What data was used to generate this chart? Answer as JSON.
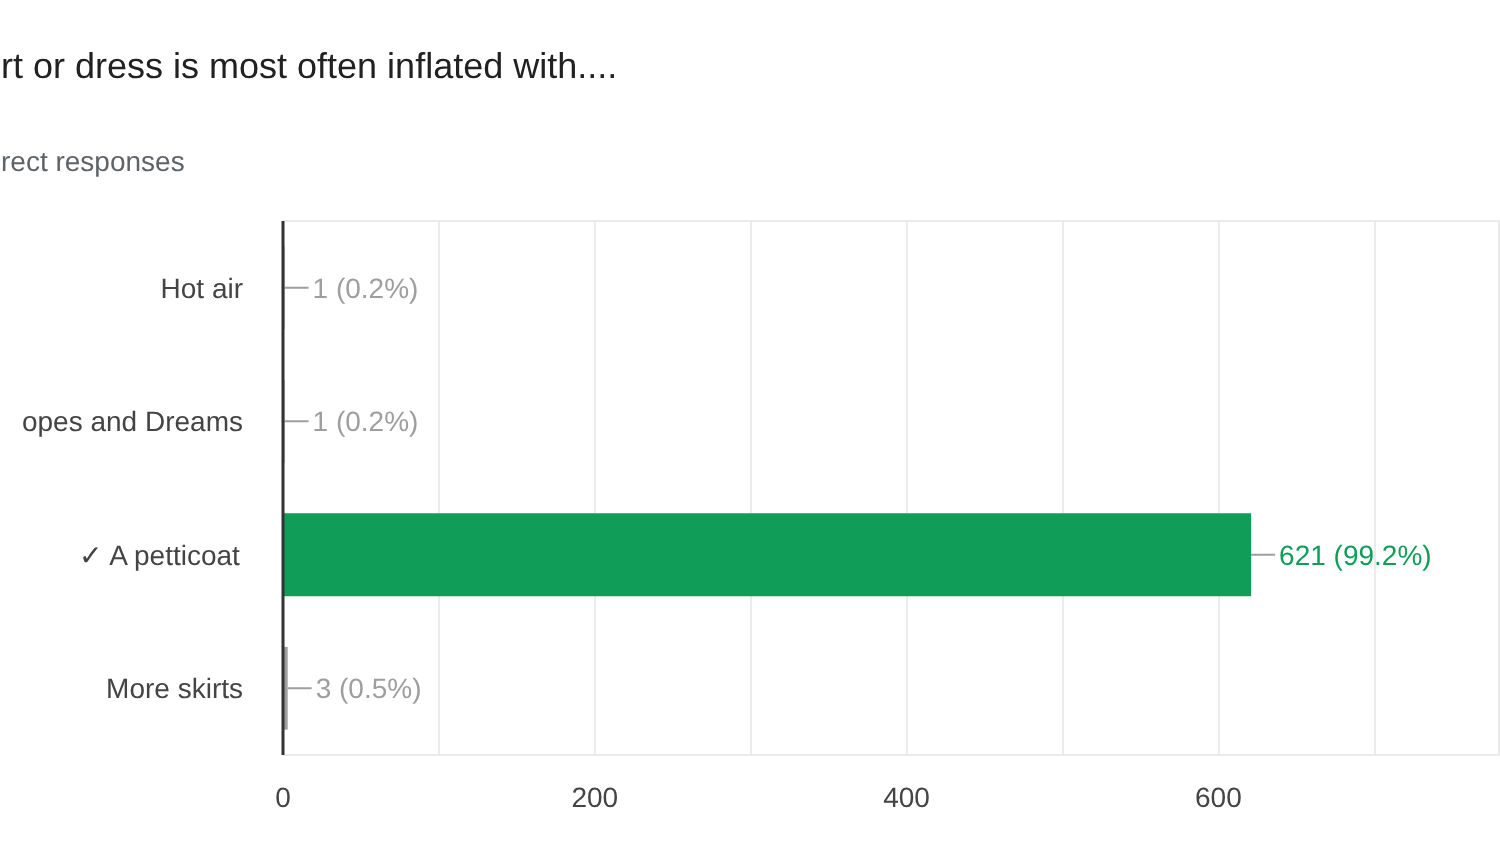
{
  "chart_data": {
    "type": "bar",
    "orientation": "horizontal",
    "title": "rt or dress is most often inflated with....",
    "subtitle": "rect responses",
    "categories": [
      "Hot air",
      "opes and Dreams",
      "✓ A petticoat",
      "More skirts"
    ],
    "values": [
      1,
      1,
      621,
      3
    ],
    "colors": [
      "#9e9e9e",
      "#9e9e9e",
      "#0f9d58",
      "#9e9e9e"
    ],
    "value_labels": [
      "1 (0.2%)",
      "1 (0.2%)",
      "621 (99.2%)",
      "3 (0.5%)"
    ],
    "xlim": [
      0,
      780
    ],
    "xticks": [
      0,
      {
        "value": 100,
        "label": null
      },
      200,
      {
        "value": 300,
        "label": null
      },
      400,
      {
        "value": 500,
        "label": null
      },
      600,
      {
        "value": 700,
        "label": null
      }
    ],
    "grid": "x"
  }
}
